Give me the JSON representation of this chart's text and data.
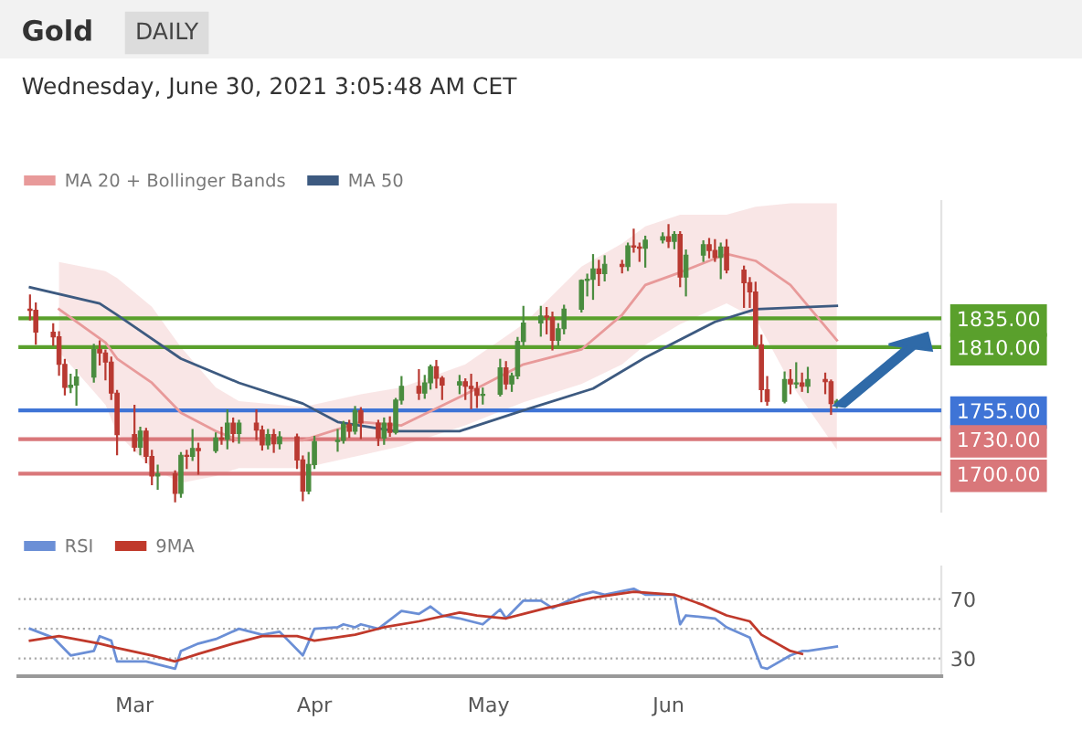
{
  "chart_data": [
    {
      "type": "candlestick",
      "title": "Gold",
      "subtitle": "DAILY",
      "annotations": [
        "Wednesday, June 30, 2021 3:05:48 AM CET"
      ],
      "x": [
        "2021-02-11",
        "2021-02-12",
        "2021-02-15",
        "2021-02-16",
        "2021-02-17",
        "2021-02-18",
        "2021-02-19",
        "2021-02-22",
        "2021-02-23",
        "2021-02-24",
        "2021-02-25",
        "2021-02-26",
        "2021-03-01",
        "2021-03-02",
        "2021-03-03",
        "2021-03-04",
        "2021-03-05",
        "2021-03-08",
        "2021-03-09",
        "2021-03-10",
        "2021-03-11",
        "2021-03-12",
        "2021-03-15",
        "2021-03-16",
        "2021-03-17",
        "2021-03-18",
        "2021-03-19",
        "2021-03-22",
        "2021-03-23",
        "2021-03-24",
        "2021-03-25",
        "2021-03-26",
        "2021-03-29",
        "2021-03-30",
        "2021-03-31",
        "2021-04-01",
        "2021-04-05",
        "2021-04-06",
        "2021-04-07",
        "2021-04-08",
        "2021-04-09",
        "2021-04-12",
        "2021-04-13",
        "2021-04-14",
        "2021-04-15",
        "2021-04-16",
        "2021-04-19",
        "2021-04-20",
        "2021-04-21",
        "2021-04-22",
        "2021-04-23",
        "2021-04-26",
        "2021-04-27",
        "2021-04-28",
        "2021-04-29",
        "2021-04-30",
        "2021-05-03",
        "2021-05-04",
        "2021-05-05",
        "2021-05-06",
        "2021-05-07",
        "2021-05-10",
        "2021-05-11",
        "2021-05-12",
        "2021-05-13",
        "2021-05-14",
        "2021-05-17",
        "2021-05-18",
        "2021-05-19",
        "2021-05-20",
        "2021-05-21",
        "2021-05-24",
        "2021-05-25",
        "2021-05-26",
        "2021-05-27",
        "2021-05-28",
        "2021-05-31",
        "2021-06-01",
        "2021-06-02",
        "2021-06-03",
        "2021-06-04",
        "2021-06-07",
        "2021-06-08",
        "2021-06-09",
        "2021-06-10",
        "2021-06-11",
        "2021-06-14",
        "2021-06-15",
        "2021-06-16",
        "2021-06-17",
        "2021-06-18",
        "2021-06-21",
        "2021-06-22",
        "2021-06-23",
        "2021-06-24",
        "2021-06-25",
        "2021-06-28",
        "2021-06-29",
        "2021-06-30"
      ],
      "ohlc": [
        [
          1843,
          1855,
          1834,
          1842
        ],
        [
          1842,
          1848,
          1813,
          1823
        ],
        [
          1823,
          1830,
          1812,
          1819
        ],
        [
          1819,
          1823,
          1786,
          1795
        ],
        [
          1795,
          1799,
          1769,
          1775
        ],
        [
          1775,
          1786,
          1771,
          1777
        ],
        [
          1777,
          1790,
          1760,
          1784
        ],
        [
          1784,
          1812,
          1780,
          1808
        ],
        [
          1808,
          1815,
          1795,
          1805
        ],
        [
          1805,
          1807,
          1782,
          1797
        ],
        [
          1797,
          1801,
          1765,
          1770
        ],
        [
          1770,
          1772,
          1717,
          1734
        ],
        [
          1734,
          1759,
          1720,
          1723
        ],
        [
          1723,
          1740,
          1717,
          1737
        ],
        [
          1737,
          1739,
          1710,
          1715
        ],
        [
          1715,
          1720,
          1691,
          1698
        ],
        [
          1698,
          1707,
          1687,
          1700
        ],
        [
          1700,
          1702,
          1676,
          1683
        ],
        [
          1683,
          1718,
          1680,
          1716
        ],
        [
          1716,
          1720,
          1705,
          1715
        ],
        [
          1715,
          1738,
          1712,
          1722
        ],
        [
          1722,
          1726,
          1700,
          1720
        ],
        [
          1720,
          1735,
          1719,
          1731
        ],
        [
          1731,
          1740,
          1726,
          1730
        ],
        [
          1730,
          1755,
          1722,
          1744
        ],
        [
          1744,
          1748,
          1728,
          1735
        ],
        [
          1735,
          1746,
          1727,
          1744
        ],
        [
          1744,
          1755,
          1730,
          1738
        ],
        [
          1738,
          1741,
          1721,
          1725
        ],
        [
          1725,
          1738,
          1722,
          1734
        ],
        [
          1734,
          1738,
          1719,
          1726
        ],
        [
          1726,
          1736,
          1722,
          1732
        ],
        [
          1732,
          1734,
          1705,
          1712
        ],
        [
          1712,
          1715,
          1677,
          1685
        ],
        [
          1685,
          1718,
          1683,
          1708
        ],
        [
          1708,
          1732,
          1705,
          1728
        ],
        [
          1728,
          1738,
          1720,
          1729
        ],
        [
          1729,
          1745,
          1727,
          1743
        ],
        [
          1743,
          1746,
          1732,
          1737
        ],
        [
          1737,
          1758,
          1735,
          1755
        ],
        [
          1755,
          1757,
          1731,
          1744
        ],
        [
          1744,
          1746,
          1725,
          1731
        ],
        [
          1731,
          1748,
          1726,
          1744
        ],
        [
          1744,
          1749,
          1733,
          1736
        ],
        [
          1736,
          1765,
          1735,
          1764
        ],
        [
          1764,
          1784,
          1761,
          1776
        ],
        [
          1776,
          1790,
          1765,
          1770
        ],
        [
          1770,
          1785,
          1766,
          1779
        ],
        [
          1779,
          1794,
          1774,
          1793
        ],
        [
          1793,
          1798,
          1775,
          1783
        ],
        [
          1783,
          1784,
          1765,
          1777
        ],
        [
          1777,
          1785,
          1770,
          1780
        ],
        [
          1780,
          1782,
          1765,
          1776
        ],
        [
          1776,
          1786,
          1757,
          1774
        ],
        [
          1774,
          1779,
          1758,
          1768
        ],
        [
          1768,
          1774,
          1761,
          1769
        ],
        [
          1769,
          1799,
          1768,
          1792
        ],
        [
          1792,
          1797,
          1774,
          1778
        ],
        [
          1778,
          1787,
          1772,
          1785
        ],
        [
          1785,
          1818,
          1783,
          1815
        ],
        [
          1815,
          1845,
          1812,
          1831
        ],
        [
          1831,
          1845,
          1820,
          1837
        ],
        [
          1837,
          1844,
          1822,
          1836
        ],
        [
          1836,
          1840,
          1808,
          1816
        ],
        [
          1816,
          1830,
          1812,
          1826
        ],
        [
          1826,
          1846,
          1822,
          1843
        ],
        [
          1843,
          1868,
          1841,
          1868
        ],
        [
          1868,
          1873,
          1855,
          1869
        ],
        [
          1869,
          1890,
          1852,
          1878
        ],
        [
          1878,
          1885,
          1864,
          1874
        ],
        [
          1874,
          1889,
          1868,
          1882
        ],
        [
          1882,
          1885,
          1875,
          1880
        ],
        [
          1880,
          1900,
          1877,
          1898
        ],
        [
          1898,
          1912,
          1893,
          1897
        ],
        [
          1897,
          1900,
          1885,
          1896
        ],
        [
          1896,
          1906,
          1880,
          1903
        ],
        [
          1903,
          1909,
          1901,
          1906
        ],
        [
          1906,
          1916,
          1897,
          1902
        ],
        [
          1902,
          1910,
          1896,
          1908
        ],
        [
          1908,
          1910,
          1863,
          1871
        ],
        [
          1871,
          1894,
          1855,
          1890
        ],
        [
          1890,
          1902,
          1885,
          1899
        ],
        [
          1899,
          1904,
          1888,
          1894
        ],
        [
          1894,
          1903,
          1885,
          1888
        ],
        [
          1888,
          1900,
          1870,
          1897
        ],
        [
          1897,
          1903,
          1875,
          1877
        ],
        [
          1877,
          1880,
          1845,
          1866
        ],
        [
          1866,
          1870,
          1845,
          1858
        ],
        [
          1858,
          1866,
          1811,
          1812
        ],
        [
          1812,
          1820,
          1763,
          1773
        ],
        [
          1773,
          1784,
          1760,
          1763
        ],
        [
          1763,
          1788,
          1762,
          1782
        ],
        [
          1782,
          1790,
          1770,
          1778
        ],
        [
          1778,
          1796,
          1775,
          1779
        ],
        [
          1779,
          1787,
          1772,
          1776
        ],
        [
          1776,
          1792,
          1771,
          1782
        ],
        [
          1782,
          1787,
          1770,
          1780
        ],
        [
          1780,
          1781,
          1752,
          1761
        ],
        [
          1761,
          1764,
          1758,
          1763
        ]
      ],
      "colors": [
        "#b93a32",
        "#b93a32",
        "#b93a32",
        "#b93a32",
        "#b93a32",
        "#4a8c3f",
        "#4a8c3f",
        "#4a8c3f",
        "#b93a32",
        "#b93a32",
        "#b93a32",
        "#b93a32",
        "#b93a32",
        "#4a8c3f",
        "#b93a32",
        "#b93a32",
        "#4a8c3f",
        "#b93a32",
        "#4a8c3f",
        "#b93a32",
        "#4a8c3f",
        "#b93a32",
        "#4a8c3f",
        "#b93a32",
        "#4a8c3f",
        "#b93a32",
        "#4a8c3f",
        "#b93a32",
        "#b93a32",
        "#4a8c3f",
        "#b93a32",
        "#4a8c3f",
        "#b93a32",
        "#b93a32",
        "#4a8c3f",
        "#4a8c3f",
        "#4a8c3f",
        "#4a8c3f",
        "#b93a32",
        "#4a8c3f",
        "#b93a32",
        "#b93a32",
        "#4a8c3f",
        "#b93a32",
        "#4a8c3f",
        "#4a8c3f",
        "#b93a32",
        "#4a8c3f",
        "#4a8c3f",
        "#b93a32",
        "#b93a32",
        "#4a8c3f",
        "#b93a32",
        "#b93a32",
        "#b93a32",
        "#4a8c3f",
        "#4a8c3f",
        "#b93a32",
        "#4a8c3f",
        "#4a8c3f",
        "#4a8c3f",
        "#4a8c3f",
        "#b93a32",
        "#b93a32",
        "#4a8c3f",
        "#4a8c3f",
        "#4a8c3f",
        "#4a8c3f",
        "#4a8c3f",
        "#b93a32",
        "#4a8c3f",
        "#b93a32",
        "#4a8c3f",
        "#b93a32",
        "#b93a32",
        "#4a8c3f",
        "#4a8c3f",
        "#b93a32",
        "#4a8c3f",
        "#b93a32",
        "#4a8c3f",
        "#4a8c3f",
        "#b93a32",
        "#b93a32",
        "#4a8c3f",
        "#b93a32",
        "#b93a32",
        "#b93a32",
        "#b93a32",
        "#b93a32",
        "#b93a32",
        "#4a8c3f",
        "#b93a32",
        "#4a8c3f",
        "#b93a32",
        "#4a8c3f",
        "#b93a32",
        "#b93a32",
        "#4a8c3f"
      ],
      "series": [
        {
          "name": "MA 20 + Bollinger Bands",
          "type": "line",
          "color": "#e89a9a",
          "x": [
            "2021-02-16",
            "2021-02-24",
            "2021-02-26",
            "2021-03-04",
            "2021-03-09",
            "2021-03-15",
            "2021-03-19",
            "2021-03-30",
            "2021-04-09",
            "2021-04-16",
            "2021-04-27",
            "2021-05-07",
            "2021-05-17",
            "2021-05-24",
            "2021-05-28",
            "2021-06-03",
            "2021-06-11",
            "2021-06-16",
            "2021-06-22",
            "2021-06-30"
          ],
          "values": [
            1843,
            1814,
            1800,
            1779,
            1753,
            1737,
            1729,
            1729,
            1745,
            1742,
            1769,
            1795,
            1808,
            1838,
            1864,
            1875,
            1891,
            1885,
            1864,
            1816
          ],
          "upper": [
            1884,
            1876,
            1870,
            1845,
            1810,
            1775,
            1763,
            1758,
            1769,
            1775,
            1795,
            1830,
            1880,
            1900,
            1915,
            1925,
            1925,
            1932,
            1935,
            1935
          ],
          "lower": [
            1806,
            1760,
            1735,
            1705,
            1692,
            1698,
            1705,
            1705,
            1716,
            1724,
            1742,
            1762,
            1778,
            1795,
            1812,
            1830,
            1848,
            1835,
            1779,
            1721
          ]
        },
        {
          "name": "MA 50",
          "type": "line",
          "color": "#3d5a80",
          "x": [
            "2021-02-11",
            "2021-02-23",
            "2021-02-26",
            "2021-03-09",
            "2021-03-19",
            "2021-03-30",
            "2021-04-05",
            "2021-04-15",
            "2021-04-26",
            "2021-05-07",
            "2021-05-19",
            "2021-05-28",
            "2021-06-09",
            "2021-06-16",
            "2021-06-30"
          ],
          "values": [
            1862,
            1848,
            1838,
            1800,
            1779,
            1761,
            1745,
            1737,
            1737,
            1755,
            1774,
            1801,
            1832,
            1843,
            1846
          ]
        }
      ],
      "ref_lines": [
        {
          "axis": "y",
          "value": 1835,
          "color": "#5aa02c"
        },
        {
          "axis": "y",
          "value": 1810,
          "color": "#5aa02c"
        },
        {
          "axis": "y",
          "value": 1755,
          "color": "#3f74d6"
        },
        {
          "axis": "y",
          "value": 1730,
          "color": "#d9777a"
        },
        {
          "axis": "y",
          "value": 1700,
          "color": "#d9777a"
        }
      ],
      "ylim": [
        1667,
        1937
      ],
      "yticks": [
        {
          "value": 1835,
          "label": "1835.00"
        },
        {
          "value": 1810,
          "label": "1810.00"
        },
        {
          "value": 1755,
          "label": "1755.00"
        },
        {
          "value": 1730,
          "label": "1730.00"
        },
        {
          "value": 1700,
          "label": "1700.00"
        }
      ],
      "xlim": [
        "2021-02-09",
        "2021-07-18"
      ],
      "legend": "top left"
    },
    {
      "type": "line",
      "series": [
        {
          "name": "RSI",
          "color": "#6b8fd6",
          "x": [
            "2021-02-11",
            "2021-02-15",
            "2021-02-18",
            "2021-02-22",
            "2021-02-23",
            "2021-02-25",
            "2021-02-26",
            "2021-03-03",
            "2021-03-08",
            "2021-03-09",
            "2021-03-12",
            "2021-03-15",
            "2021-03-19",
            "2021-03-23",
            "2021-03-26",
            "2021-03-30",
            "2021-04-01",
            "2021-04-05",
            "2021-04-06",
            "2021-04-08",
            "2021-04-09",
            "2021-04-12",
            "2021-04-16",
            "2021-04-19",
            "2021-04-21",
            "2021-04-23",
            "2021-04-26",
            "2021-04-30",
            "2021-05-03",
            "2021-05-04",
            "2021-05-07",
            "2021-05-10",
            "2021-05-12",
            "2021-05-17",
            "2021-05-19",
            "2021-05-21",
            "2021-05-26",
            "2021-05-28",
            "2021-06-02",
            "2021-06-03",
            "2021-06-04",
            "2021-06-09",
            "2021-06-11",
            "2021-06-15",
            "2021-06-17",
            "2021-06-18",
            "2021-06-22",
            "2021-06-24",
            "2021-06-25",
            "2021-06-30"
          ],
          "values": [
            50,
            44,
            32,
            35,
            45,
            42,
            28,
            28,
            23,
            35,
            40,
            43,
            50,
            46,
            48,
            32,
            50,
            51,
            53,
            51,
            53,
            50,
            62,
            60,
            65,
            59,
            57,
            53,
            63,
            57,
            69,
            69,
            64,
            73,
            75,
            73,
            77,
            73,
            73,
            53,
            59,
            57,
            51,
            44,
            24,
            23,
            32,
            35,
            35,
            38
          ]
        },
        {
          "name": "9MA",
          "color": "#c0392b",
          "x": [
            "2021-02-11",
            "2021-02-16",
            "2021-02-23",
            "2021-02-26",
            "2021-03-04",
            "2021-03-08",
            "2021-03-12",
            "2021-03-18",
            "2021-03-23",
            "2021-03-29",
            "2021-04-01",
            "2021-04-08",
            "2021-04-13",
            "2021-04-19",
            "2021-04-26",
            "2021-04-29",
            "2021-05-04",
            "2021-05-07",
            "2021-05-11",
            "2021-05-19",
            "2021-05-26",
            "2021-06-02",
            "2021-06-07",
            "2021-06-11",
            "2021-06-15",
            "2021-06-17",
            "2021-06-22",
            "2021-06-24"
          ],
          "values": [
            42,
            45,
            40,
            37,
            32,
            28,
            33,
            40,
            45,
            45,
            42,
            46,
            51,
            55,
            61,
            59,
            57,
            60,
            64,
            71,
            75,
            73,
            66,
            59,
            55,
            46,
            35,
            33
          ]
        }
      ],
      "xlim": [
        "2021-02-09",
        "2021-07-18"
      ],
      "xticks": [
        {
          "value": "2021-03-01",
          "label": "Mar"
        },
        {
          "value": "2021-04-01",
          "label": "Apr"
        },
        {
          "value": "2021-05-01",
          "label": "May"
        },
        {
          "value": "2021-06-01",
          "label": "Jun"
        }
      ],
      "ylim": [
        18,
        92
      ],
      "yticks": [
        {
          "value": 70,
          "label": "70"
        },
        {
          "value": 50,
          "label": null
        },
        {
          "value": 30,
          "label": "30"
        }
      ],
      "grid": "y",
      "legend": "top left"
    }
  ]
}
